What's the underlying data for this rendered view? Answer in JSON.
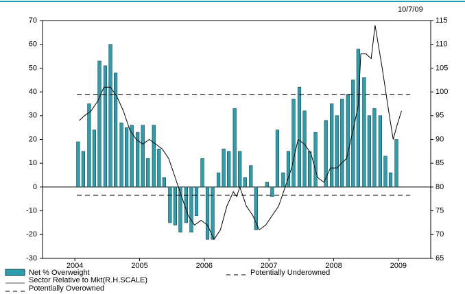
{
  "chart_data": {
    "type": "bar",
    "date_label": "10/7/09",
    "xlim": [
      2003.5,
      2009.5
    ],
    "xticks": [
      2004,
      2005,
      2006,
      2007,
      2008,
      2009
    ],
    "ylim": [
      -30,
      70
    ],
    "yticks": [
      -30,
      -20,
      -10,
      0,
      10,
      20,
      30,
      40,
      50,
      60,
      70
    ],
    "y2lim": [
      65,
      115
    ],
    "y2ticks": [
      65,
      70,
      75,
      80,
      85,
      90,
      95,
      100,
      105,
      110,
      115
    ],
    "series": [
      {
        "name": "Net % Overweight",
        "color": "#2a9fb0",
        "x": [
          2004.05,
          2004.13,
          2004.22,
          2004.3,
          2004.38,
          2004.47,
          2004.55,
          2004.63,
          2004.72,
          2004.8,
          2004.88,
          2004.97,
          2005.05,
          2005.13,
          2005.22,
          2005.3,
          2005.38,
          2005.47,
          2005.55,
          2005.63,
          2005.72,
          2005.8,
          2005.88,
          2005.97,
          2006.05,
          2006.13,
          2006.22,
          2006.3,
          2006.38,
          2006.47,
          2006.55,
          2006.63,
          2006.72,
          2006.8,
          2006.88,
          2006.97,
          2007.05,
          2007.13,
          2007.22,
          2007.3,
          2007.38,
          2007.47,
          2007.55,
          2007.63,
          2007.72,
          2007.8,
          2007.88,
          2007.97,
          2008.05,
          2008.13,
          2008.22,
          2008.3,
          2008.38,
          2008.47,
          2008.55,
          2008.63,
          2008.72,
          2008.8,
          2008.88,
          2008.97
        ],
        "values": [
          19,
          15,
          35,
          24,
          53,
          51,
          60,
          48,
          27,
          25,
          26,
          23,
          26,
          12,
          26,
          16,
          4,
          -15,
          -16,
          -19,
          -15,
          -19,
          -12,
          12,
          -22,
          -22,
          6,
          16,
          15,
          33,
          15,
          4,
          9,
          -18,
          0,
          2,
          -4,
          24,
          6,
          15,
          37,
          42,
          32,
          15,
          23,
          0,
          28,
          35,
          30,
          37,
          39,
          45,
          58,
          46,
          30,
          33,
          30,
          13,
          6,
          20
        ]
      },
      {
        "name": "Sector Relative to Mkt(R.H.SCALE)",
        "color": "#000000",
        "type": "line",
        "axis": "y2",
        "x": [
          2004.07,
          2004.15,
          2004.25,
          2004.35,
          2004.45,
          2004.55,
          2004.65,
          2004.75,
          2004.85,
          2004.95,
          2005.05,
          2005.15,
          2005.25,
          2005.35,
          2005.45,
          2005.55,
          2005.65,
          2005.75,
          2005.85,
          2005.95,
          2006.05,
          2006.15,
          2006.25,
          2006.35,
          2006.45,
          2006.5,
          2006.55,
          2006.65,
          2006.75,
          2006.85,
          2006.95,
          2007.05,
          2007.15,
          2007.25,
          2007.35,
          2007.45,
          2007.55,
          2007.65,
          2007.75,
          2007.85,
          2007.95,
          2008.05,
          2008.12,
          2008.2,
          2008.3,
          2008.38,
          2008.42,
          2008.5,
          2008.58,
          2008.64,
          2008.75,
          2008.85,
          2008.92,
          2008.98,
          2009.05
        ],
        "values": [
          94,
          95,
          96,
          98,
          101,
          101,
          99,
          96,
          92,
          90,
          89,
          90,
          89,
          88,
          86,
          82,
          78,
          74,
          72,
          73,
          72,
          69,
          71,
          76,
          79,
          78,
          80,
          76,
          74,
          71,
          72,
          74,
          76,
          80,
          84,
          90,
          89,
          87,
          82,
          81,
          84,
          84,
          85,
          86,
          92,
          97,
          108,
          108,
          107,
          114,
          105,
          96,
          90,
          93,
          96
        ]
      },
      {
        "name": "Potentially Overowned",
        "color": "#000000",
        "type": "reference",
        "value": 39
      },
      {
        "name": "Potentially Underowned",
        "color": "#000000",
        "type": "reference",
        "value": -3.5
      }
    ]
  }
}
